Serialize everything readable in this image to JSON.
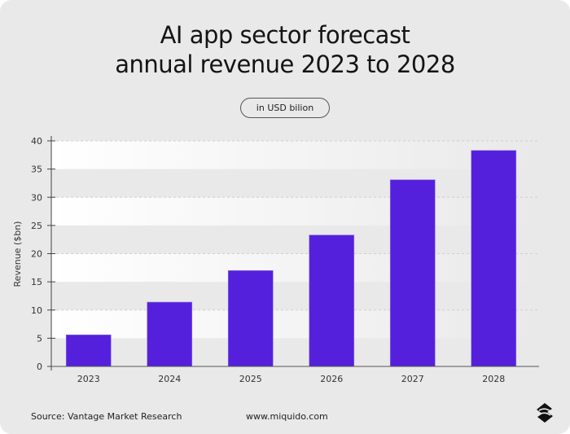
{
  "title_line1": "AI app sector forecast",
  "title_line2": "annual revenue 2023 to 2028",
  "unit_pill": "in USD bilion",
  "footer": {
    "source": "Source: Vantage Market Research",
    "url": "www.miquido.com",
    "logo_icon": "miquido-logo-icon"
  },
  "chart_data": {
    "type": "bar",
    "categories": [
      "2023",
      "2024",
      "2025",
      "2026",
      "2027",
      "2028"
    ],
    "values": [
      5.6,
      11.4,
      17.0,
      23.3,
      33.1,
      38.3
    ],
    "title": "AI app sector forecast annual revenue 2023 to 2028",
    "xlabel": "",
    "ylabel": "Revenue ($bn)",
    "ylim": [
      0,
      40
    ],
    "yticks": [
      0,
      5,
      10,
      15,
      20,
      25,
      30,
      35,
      40
    ],
    "grid": true,
    "bar_color": "#5520dc"
  }
}
